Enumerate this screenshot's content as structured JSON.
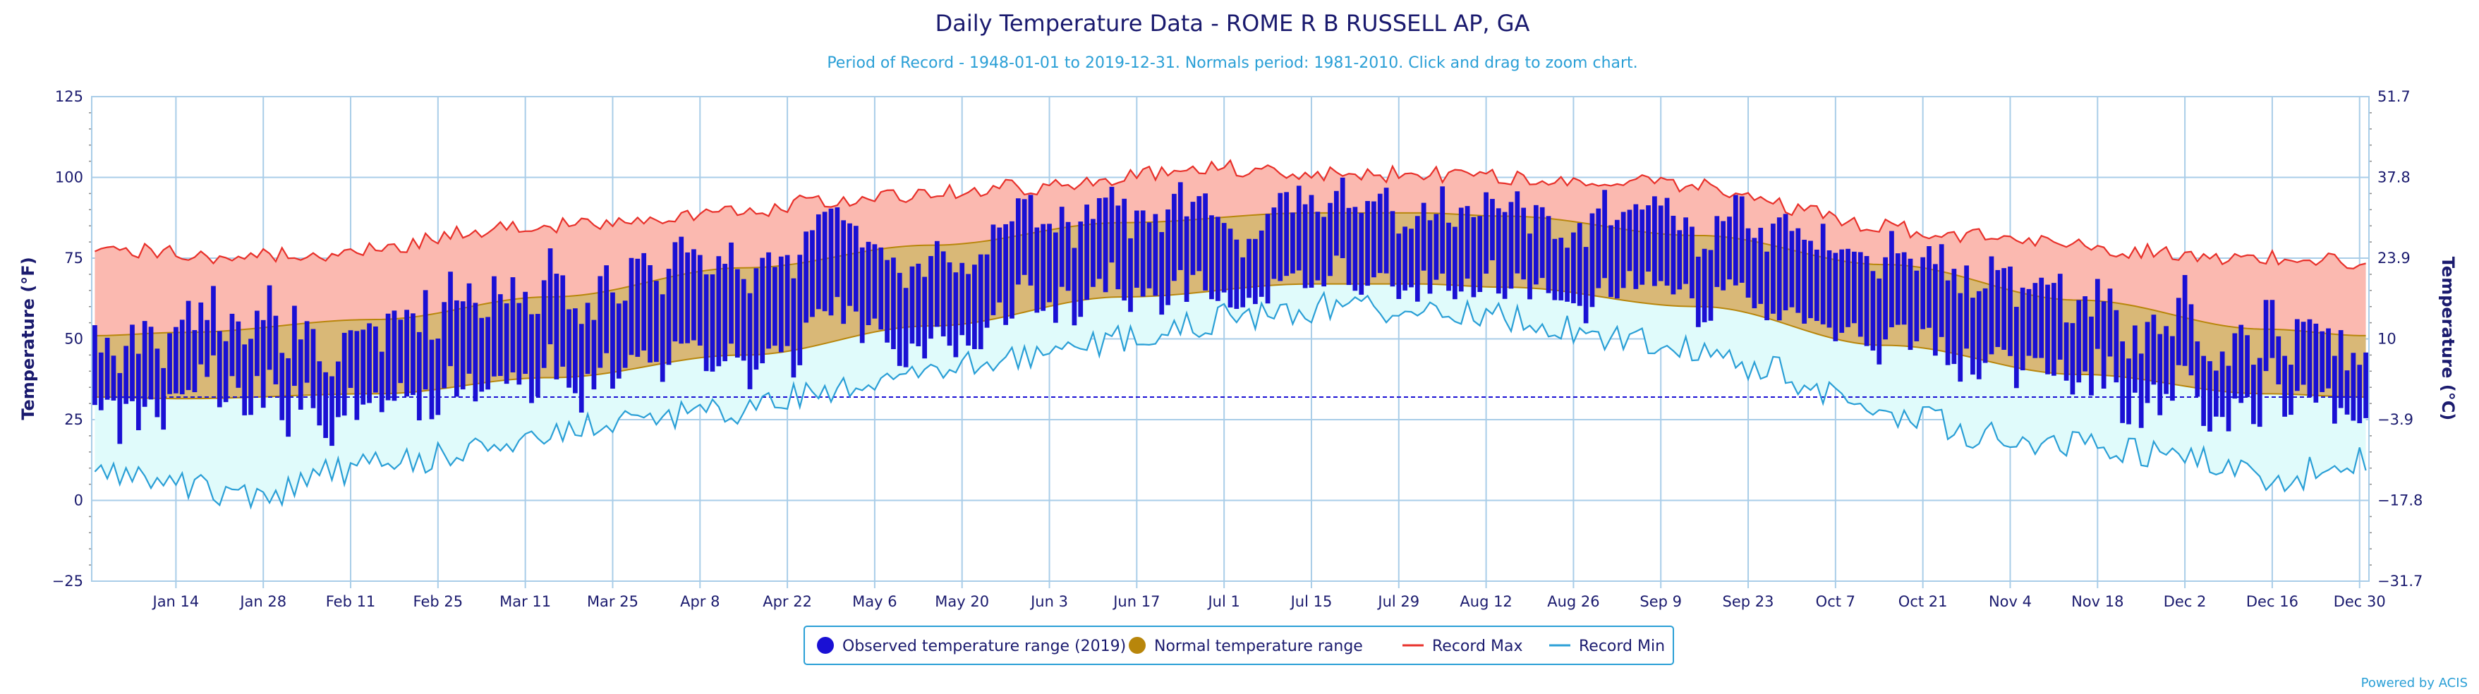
{
  "chart_data": {
    "type": "bar",
    "title": "Daily Temperature Data - ROME R B RUSSELL AP, GA",
    "subtitle": "Period of Record - 1948-01-01 to 2019-12-31. Normals period: 1981-2010. Click and drag to zoom chart.",
    "credit": "Powered by ACIS",
    "year": 2019,
    "ylabel_left": "Temperature (°F)",
    "ylabel_right": "Temperature (°C)",
    "ylim": [
      -25,
      125
    ],
    "yticks_f": [
      "125",
      "100",
      "75",
      "50",
      "25",
      "0",
      "−25"
    ],
    "yticks_c": [
      "51.7",
      "37.8",
      "23.9",
      "10",
      "−3.9",
      "−17.8",
      "−31.7"
    ],
    "xticks": [
      "Jan 14",
      "Jan 28",
      "Feb 11",
      "Feb 25",
      "Mar 11",
      "Mar 25",
      "Apr 8",
      "Apr 22",
      "May 6",
      "May 20",
      "Jun 3",
      "Jun 17",
      "Jul 1",
      "Jul 15",
      "Jul 29",
      "Aug 12",
      "Aug 26",
      "Sep 9",
      "Sep 23",
      "Oct 7",
      "Oct 21",
      "Nov 4",
      "Nov 18",
      "Dec 2",
      "Dec 16",
      "Dec 30"
    ],
    "freezing_line_f": 32,
    "grid": true,
    "legend_position": "bottom-center",
    "legend": [
      {
        "label": "Observed temperature range (2019)",
        "color": "#1a10d4",
        "symbol": "dot"
      },
      {
        "label": "Normal temperature range",
        "color": "#b8860b",
        "symbol": "dot"
      },
      {
        "label": "Record Max",
        "color": "#e8302a",
        "symbol": "line"
      },
      {
        "label": "Record Min",
        "color": "#2a9fd6",
        "symbol": "line"
      }
    ],
    "colors": {
      "observed": "#1a10d4",
      "normal_fill": "#d9b877",
      "normal_line": "#b8860b",
      "record_max_line": "#e8302a",
      "record_max_fill": "#fbb9b0",
      "record_min_line": "#2a9fd6",
      "record_min_fill": "#e0fbfb",
      "grid": "#a9cde8",
      "freezing": "#1a10d4"
    },
    "normals_anchor": {
      "day": [
        1,
        15,
        46,
        74,
        105,
        135,
        166,
        196,
        213,
        227,
        258,
        288,
        319,
        349,
        365
      ],
      "high": [
        51,
        52,
        56,
        63,
        72,
        79,
        86,
        89,
        89,
        88,
        82,
        73,
        62,
        53,
        51
      ],
      "low": [
        32,
        31.5,
        33,
        38,
        45,
        54,
        63,
        67,
        67,
        66,
        60,
        48,
        39,
        33,
        32
      ]
    },
    "record_max_anchor": {
      "day": [
        1,
        10,
        20,
        35,
        50,
        60,
        75,
        90,
        105,
        120,
        135,
        150,
        160,
        170,
        180,
        190,
        200,
        213,
        225,
        240,
        255,
        265,
        275,
        285,
        300,
        315,
        330,
        345,
        365
      ],
      "value": [
        76,
        77,
        75,
        76,
        79,
        83,
        85,
        87,
        90,
        93,
        95,
        97,
        98,
        101,
        103,
        102,
        101,
        101,
        100,
        99,
        98,
        95,
        90,
        85,
        82,
        80,
        77,
        75,
        74
      ]
    },
    "record_min_anchor": {
      "day": [
        1,
        10,
        20,
        28,
        40,
        50,
        60,
        72,
        85,
        100,
        115,
        130,
        145,
        160,
        170,
        185,
        200,
        215,
        230,
        245,
        258,
        270,
        280,
        290,
        305,
        315,
        325,
        335,
        345,
        352,
        358,
        365
      ],
      "value": [
        10,
        8,
        3,
        1,
        9,
        12,
        15,
        20,
        25,
        27,
        32,
        37,
        43,
        48,
        52,
        57,
        60,
        59,
        56,
        50,
        46,
        40,
        32,
        27,
        20,
        18,
        15,
        14,
        8,
        3,
        11,
        13
      ]
    }
  }
}
